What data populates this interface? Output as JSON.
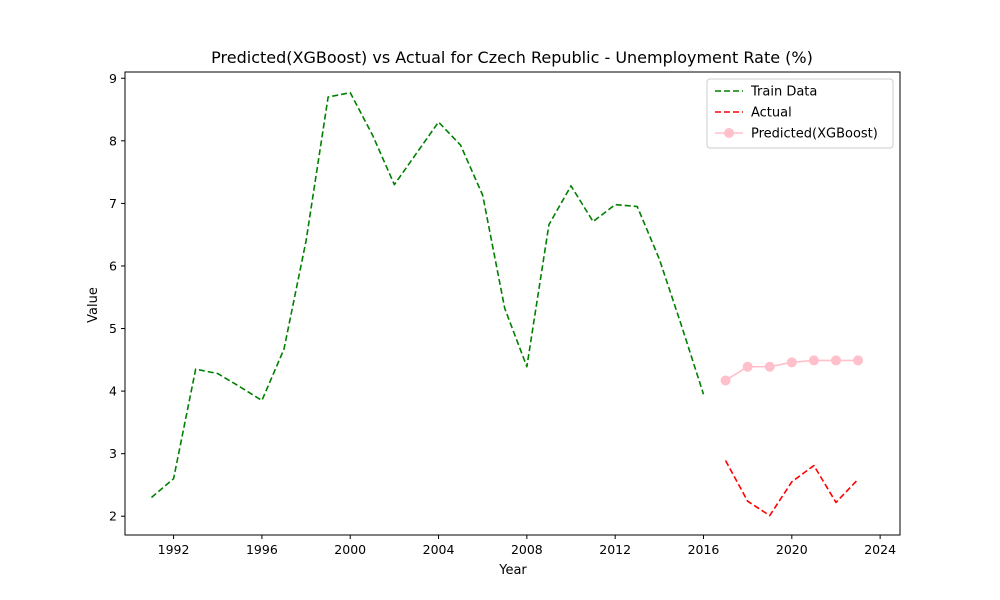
{
  "chart_data": {
    "type": "line",
    "title": "Predicted(XGBoost) vs Actual for Czech Republic - Unemployment Rate (%)",
    "xlabel": "Year",
    "ylabel": "Value",
    "xlim": [
      1989.8,
      2024.9
    ],
    "ylim": [
      1.7,
      9.1
    ],
    "xticks": [
      1992,
      1996,
      2000,
      2004,
      2008,
      2012,
      2016,
      2020,
      2024
    ],
    "yticks": [
      2,
      3,
      4,
      5,
      6,
      7,
      8,
      9
    ],
    "grid": false,
    "legend_position": "top-right",
    "series": [
      {
        "name": "Train Data",
        "color": "#008000",
        "style": "dashed",
        "marker": "none",
        "x": [
          1991,
          1992,
          1993,
          1994,
          1995,
          1996,
          1997,
          1998,
          1999,
          2000,
          2001,
          2002,
          2003,
          2004,
          2005,
          2006,
          2007,
          2008,
          2009,
          2010,
          2011,
          2012,
          2013,
          2014,
          2015,
          2016
        ],
        "y": [
          2.3,
          2.6,
          4.35,
          4.28,
          4.07,
          3.85,
          4.67,
          6.4,
          8.7,
          8.77,
          8.1,
          7.3,
          7.8,
          8.3,
          7.93,
          7.13,
          5.32,
          4.39,
          6.66,
          7.28,
          6.71,
          6.98,
          6.95,
          6.11,
          5.05,
          3.95
        ]
      },
      {
        "name": "Actual",
        "color": "#ff0000",
        "style": "dashed",
        "marker": "none",
        "x": [
          2017,
          2018,
          2019,
          2020,
          2021,
          2022,
          2023
        ],
        "y": [
          2.89,
          2.24,
          2.01,
          2.55,
          2.81,
          2.22,
          2.59
        ]
      },
      {
        "name": "Predicted(XGBoost)",
        "color": "#ffc0cb",
        "style": "solid",
        "marker": "circle",
        "x": [
          2017,
          2018,
          2019,
          2020,
          2021,
          2022,
          2023
        ],
        "y": [
          4.17,
          4.39,
          4.39,
          4.46,
          4.49,
          4.49,
          4.49
        ]
      }
    ]
  }
}
